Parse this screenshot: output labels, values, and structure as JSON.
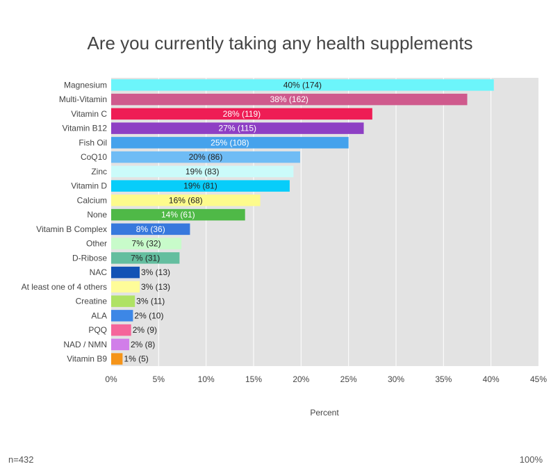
{
  "chart_data": {
    "type": "bar",
    "orientation": "horizontal",
    "title": "Are you currently taking any health supplements",
    "xlabel": "Percent",
    "ylabel": "",
    "xlim": [
      0,
      45
    ],
    "x_ticks": [
      "0%",
      "5%",
      "10%",
      "15%",
      "20%",
      "25%",
      "30%",
      "35%",
      "40%",
      "45%"
    ],
    "grid": "vertical",
    "categories": [
      "Magnesium",
      "Multi-Vitamin",
      "Vitamin C",
      "Vitamin B12",
      "Fish Oil",
      "CoQ10",
      "Zinc",
      "Vitamin D",
      "Calcium",
      "None",
      "Vitamin B Complex",
      "Other",
      "D-Ribose",
      "NAC",
      "At least one of 4 others",
      "Creatine",
      "ALA",
      "PQQ",
      "NAD / NMN",
      "Vitamin B9"
    ],
    "values": [
      40.3,
      37.5,
      27.5,
      26.6,
      25.0,
      19.9,
      19.2,
      18.8,
      15.7,
      14.1,
      8.3,
      7.4,
      7.2,
      3.0,
      3.0,
      2.5,
      2.3,
      2.1,
      1.9,
      1.2
    ],
    "data_labels": [
      "40% (174)",
      "38% (162)",
      "28% (119)",
      "27% (115)",
      "25% (108)",
      "20% (86)",
      "19% (83)",
      "19% (81)",
      "16% (68)",
      "14% (61)",
      "8% (36)",
      "7% (32)",
      "7% (31)",
      "3% (13)",
      "3% (13)",
      "3% (11)",
      "2% (10)",
      "2% (9)",
      "2% (8)",
      "1% (5)"
    ],
    "colors": [
      "#6cf5fb",
      "#cf5a8d",
      "#ee1d55",
      "#8e3fc4",
      "#45a2ec",
      "#6fbcf5",
      "#cbfbfa",
      "#07cdfa",
      "#fdfb8c",
      "#4fb947",
      "#3778dd",
      "#c8fbca",
      "#64be9f",
      "#1352b5",
      "#fefc99",
      "#afe264",
      "#3d87e6",
      "#f5659a",
      "#d17ee9",
      "#f59419"
    ],
    "label_colors": [
      "#222222",
      "#ffffff",
      "#ffffff",
      "#ffffff",
      "#ffffff",
      "#222222",
      "#222222",
      "#222222",
      "#222222",
      "#ffffff",
      "#ffffff",
      "#222222",
      "#222222",
      "#222222",
      "#222222",
      "#222222",
      "#222222",
      "#222222",
      "#222222",
      "#222222"
    ],
    "plot_background": "#e3e3e3",
    "grid_color": "#ffffff"
  },
  "footer": {
    "n": "n=432",
    "percent": "100%"
  }
}
